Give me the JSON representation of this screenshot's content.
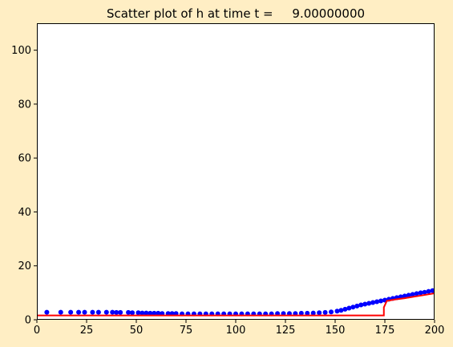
{
  "chart_data": {
    "type": "scatter",
    "title": "Scatter plot of h at time t =     9.00000000",
    "xlabel": "",
    "ylabel": "",
    "xlim": [
      0,
      200
    ],
    "ylim": [
      0,
      110
    ],
    "xticks": [
      0,
      25,
      50,
      75,
      100,
      125,
      150,
      175,
      200
    ],
    "yticks": [
      0,
      20,
      40,
      60,
      80,
      100
    ],
    "grid": false,
    "colors": {
      "background": "#FFEEC4",
      "axes_face": "#FFFFFF",
      "scatter": "#0000FF",
      "reference_line": "#FF0000"
    },
    "series": [
      {
        "kind": "scatter",
        "x": [
          5,
          12,
          17,
          21,
          24,
          28,
          31,
          35,
          38,
          40,
          42,
          46,
          48,
          51,
          53,
          55,
          57,
          59,
          61,
          63,
          66,
          68,
          70,
          73,
          76,
          79,
          82,
          85,
          88,
          91,
          94,
          97,
          100,
          103,
          106,
          109,
          112,
          115,
          118,
          121,
          124,
          127,
          130,
          133,
          136,
          139,
          142,
          145,
          148,
          151,
          153,
          155,
          157,
          159,
          161,
          163,
          165,
          167,
          169,
          171,
          173,
          175,
          177,
          179,
          181,
          183,
          185,
          187,
          189,
          191,
          193,
          195,
          197,
          199
        ],
        "y": [
          2.8,
          2.8,
          2.8,
          2.8,
          2.8,
          2.8,
          2.8,
          2.8,
          2.8,
          2.7,
          2.7,
          2.7,
          2.6,
          2.6,
          2.5,
          2.5,
          2.4,
          2.4,
          2.4,
          2.3,
          2.3,
          2.3,
          2.3,
          2.2,
          2.2,
          2.2,
          2.2,
          2.2,
          2.2,
          2.2,
          2.2,
          2.2,
          2.2,
          2.2,
          2.2,
          2.2,
          2.2,
          2.2,
          2.2,
          2.3,
          2.3,
          2.3,
          2.3,
          2.4,
          2.4,
          2.5,
          2.6,
          2.7,
          2.9,
          3.2,
          3.5,
          3.9,
          4.3,
          4.7,
          5.1,
          5.5,
          5.8,
          6.1,
          6.4,
          6.7,
          7.0,
          7.3,
          7.6,
          7.9,
          8.2,
          8.5,
          8.8,
          9.1,
          9.4,
          9.7,
          10.0,
          10.2,
          10.5,
          10.8
        ]
      },
      {
        "kind": "line",
        "x": [
          0,
          174.5,
          174.5,
          176,
          180,
          185,
          190,
          195,
          200
        ],
        "y": [
          1.6,
          1.6,
          4.6,
          7.0,
          7.5,
          8.0,
          8.6,
          9.2,
          9.8
        ]
      }
    ]
  }
}
